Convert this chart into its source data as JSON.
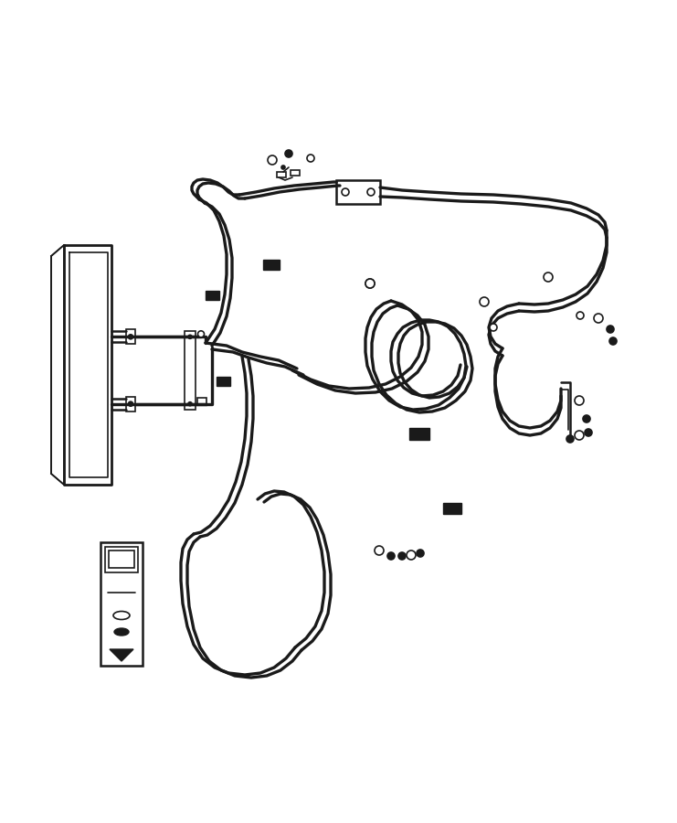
{
  "bg_color": "#ffffff",
  "line_color": "#1a1a1a",
  "figsize": [
    7.41,
    9.0
  ],
  "dpi": 100
}
